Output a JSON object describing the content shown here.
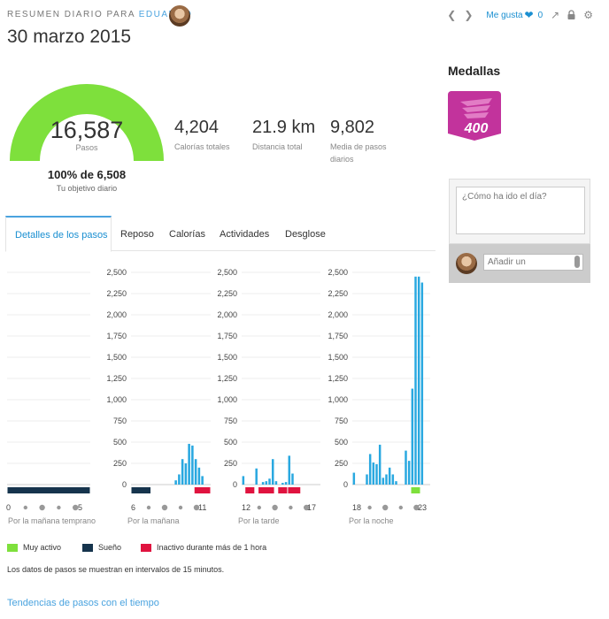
{
  "header": {
    "kicker": "RESUMEN DIARIO PARA",
    "user": "EDUARDO",
    "date": "30 marzo 2015"
  },
  "toolbar": {
    "prev_icon": "chevron-left-icon",
    "next_icon": "chevron-right-icon",
    "like_label": "Me gusta",
    "like_count": "0",
    "share_icon": "share-icon",
    "lock_icon": "lock-icon",
    "settings_icon": "gear-icon"
  },
  "summary": {
    "steps": "16,587",
    "steps_label": "Pasos",
    "goal_percent_text": "100% de 6,508",
    "goal_label": "Tu objetivo diario",
    "goal_fraction": 1.0,
    "gauge_color": "#7ee03c",
    "stats": [
      {
        "value": "4,204",
        "label": "Calorías totales"
      },
      {
        "value": "21.9 km",
        "label": "Distancia total"
      },
      {
        "value": "9,802",
        "label": "Media de pasos diarios"
      }
    ]
  },
  "medals": {
    "title": "Medallas",
    "badge_text": "400",
    "badge_color": "#c2339c"
  },
  "comment": {
    "placeholder": "¿Cómo ha ido el día?",
    "add_placeholder": "Añadir un"
  },
  "tabs": [
    {
      "label": "Detalles de los pasos",
      "active": true
    },
    {
      "label": "Reposo",
      "active": false
    },
    {
      "label": "Calorías",
      "active": false
    },
    {
      "label": "Actividades",
      "active": false
    },
    {
      "label": "Desglose",
      "active": false
    }
  ],
  "chart_data": {
    "type": "bar",
    "ylim": [
      0,
      2500
    ],
    "yticks": [
      "2,500",
      "2,250",
      "2,000",
      "1,750",
      "1,500",
      "1,250",
      "1,000",
      "750",
      "500",
      "250",
      "0"
    ],
    "bar_color": "#29a8e0",
    "interval": "15 min",
    "panels": [
      {
        "period": "Por la mañana temprano",
        "start_label": "0",
        "end_label": "5",
        "show_axis": false,
        "values": [
          0,
          0,
          0,
          0,
          0,
          0,
          0,
          0,
          0,
          0,
          0,
          0,
          0,
          0,
          0,
          0,
          0,
          0,
          0,
          0,
          0,
          0,
          0,
          0
        ],
        "bands": [
          {
            "type": "sleep",
            "from": 0,
            "to": 24
          }
        ]
      },
      {
        "period": "Por la mañana",
        "start_label": "6",
        "end_label": "11",
        "show_axis": true,
        "values": [
          0,
          0,
          0,
          0,
          0,
          0,
          0,
          0,
          0,
          0,
          0,
          0,
          0,
          50,
          120,
          300,
          250,
          480,
          460,
          300,
          200,
          100,
          0,
          0
        ],
        "bands": [
          {
            "type": "sleep",
            "from": 0,
            "to": 6
          },
          {
            "type": "inactive",
            "from": 19,
            "to": 24
          }
        ]
      },
      {
        "period": "Por la tarde",
        "start_label": "12",
        "end_label": "17",
        "show_axis": true,
        "values": [
          100,
          0,
          0,
          0,
          190,
          0,
          30,
          40,
          70,
          300,
          40,
          0,
          20,
          30,
          340,
          130,
          0,
          0,
          0,
          0,
          0,
          0,
          0,
          0
        ],
        "bands": [
          {
            "type": "inactive",
            "from": 1,
            "to": 4
          },
          {
            "type": "inactive",
            "from": 5,
            "to": 10
          },
          {
            "type": "inactive",
            "from": 11,
            "to": 14
          },
          {
            "type": "inactive",
            "from": 14,
            "to": 18
          }
        ]
      },
      {
        "period": "Por la noche",
        "start_label": "18",
        "end_label": "23",
        "show_axis": true,
        "values": [
          140,
          0,
          0,
          0,
          120,
          360,
          260,
          240,
          470,
          80,
          120,
          200,
          120,
          40,
          0,
          0,
          400,
          280,
          1130,
          2450,
          2450,
          2380,
          0,
          0
        ],
        "bands": [
          {
            "type": "active",
            "from": 18,
            "to": 21
          }
        ]
      }
    ]
  },
  "legend": [
    {
      "label": "Muy activo",
      "color": "#7ee03c"
    },
    {
      "label": "Sueño",
      "color": "#16344d"
    },
    {
      "label": "Inactivo durante más de 1 hora",
      "color": "#e0133f"
    }
  ],
  "note": "Los datos de pasos se muestran en intervalos de 15 minutos.",
  "trends_link": "Tendencias de pasos con el tiempo"
}
